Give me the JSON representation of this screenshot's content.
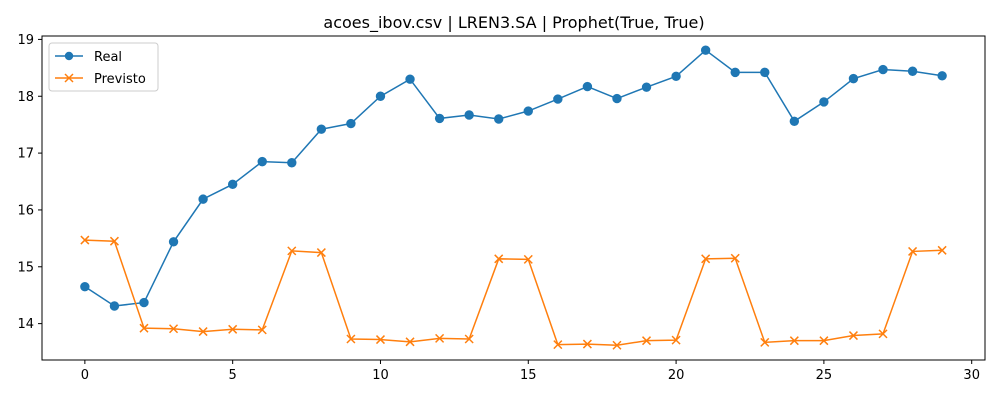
{
  "chart_data": {
    "type": "line",
    "title": "acoes_ibov.csv | LREN3.SA | Prophet(True, True)",
    "xlabel": "",
    "ylabel": "",
    "xlim": [
      -1.45,
      30.45
    ],
    "ylim": [
      13.36,
      19.06
    ],
    "xticks": [
      0,
      5,
      10,
      15,
      20,
      25,
      30
    ],
    "yticks": [
      14,
      15,
      16,
      17,
      18,
      19
    ],
    "grid": false,
    "legend_position": "top-left",
    "x": [
      0,
      1,
      2,
      3,
      4,
      5,
      6,
      7,
      8,
      9,
      10,
      11,
      12,
      13,
      14,
      15,
      16,
      17,
      18,
      19,
      20,
      21,
      22,
      23,
      24,
      25,
      26,
      27,
      28,
      29
    ],
    "series": [
      {
        "name": "Real",
        "color": "#1f77b4",
        "marker": "circle",
        "values": [
          14.65,
          14.31,
          14.37,
          15.44,
          16.19,
          16.45,
          16.85,
          16.83,
          17.42,
          17.52,
          18.0,
          18.3,
          17.61,
          17.67,
          17.6,
          17.74,
          17.95,
          18.17,
          17.96,
          18.16,
          18.35,
          18.81,
          18.42,
          18.42,
          17.56,
          17.9,
          18.31,
          18.47,
          18.44,
          18.36
        ]
      },
      {
        "name": "Previsto",
        "color": "#ff7f0e",
        "marker": "x",
        "values": [
          15.47,
          15.45,
          13.92,
          13.91,
          13.86,
          13.9,
          13.89,
          15.28,
          15.25,
          13.73,
          13.72,
          13.68,
          13.74,
          13.73,
          15.14,
          15.13,
          13.63,
          13.64,
          13.62,
          13.7,
          13.71,
          15.14,
          15.15,
          13.67,
          13.7,
          13.7,
          13.79,
          13.82,
          15.27,
          15.29
        ]
      }
    ]
  }
}
